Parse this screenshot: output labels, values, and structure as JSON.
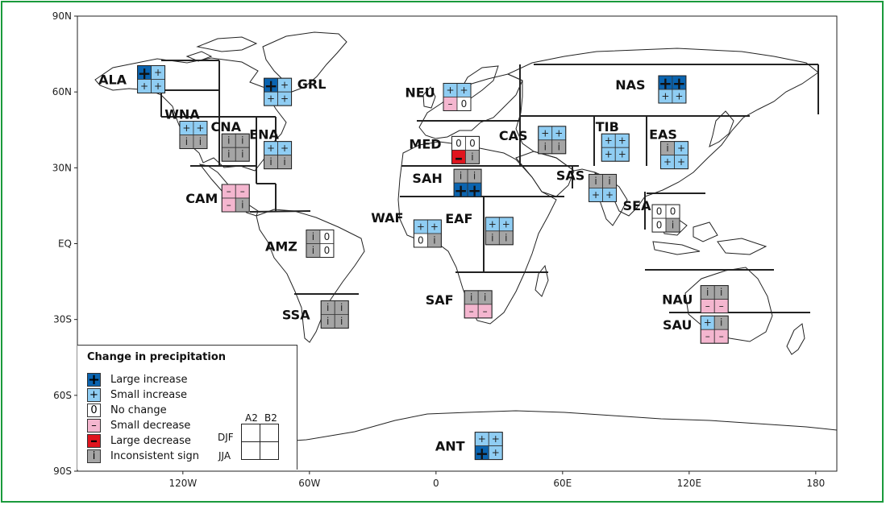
{
  "map": {
    "lat_labels": [
      "90N",
      "60N",
      "30N",
      "EQ",
      "30S",
      "60S",
      "90S"
    ],
    "lon_labels": [
      "120W",
      "60W",
      "0",
      "60E",
      "120E",
      "180"
    ],
    "lat_values": [
      90,
      60,
      30,
      0,
      -30,
      -60,
      -90
    ],
    "lon_values": [
      -120,
      -60,
      0,
      60,
      120,
      180
    ],
    "extent": {
      "lon_min": -170,
      "lon_max": 190,
      "lat_min": -90,
      "lat_max": 90
    }
  },
  "colors": {
    "large_increase": "#0a64b0",
    "small_increase": "#8fcdf3",
    "no_change": "#ffffff",
    "small_decrease": "#f4b6cf",
    "large_decrease": "#e0141e",
    "inconsistent": "#a5a5a5"
  },
  "symbols": {
    "LI": "+",
    "SI": "+",
    "NC": "0",
    "SD": "–",
    "LD": "–",
    "IN": "i"
  },
  "regions": [
    {
      "name": "ALA",
      "lon": -135,
      "lat": 65,
      "cells": [
        "LI",
        "SI",
        "SI",
        "SI"
      ]
    },
    {
      "name": "GRL",
      "lon": -75,
      "lat": 60,
      "cells": [
        "LI",
        "SI",
        "SI",
        "SI"
      ]
    },
    {
      "name": "WNA",
      "lon": -115,
      "lat": 43,
      "cells": [
        "SI",
        "SI",
        "IN",
        "IN"
      ]
    },
    {
      "name": "CNA",
      "lon": -95,
      "lat": 38,
      "cells": [
        "IN",
        "IN",
        "IN",
        "IN"
      ]
    },
    {
      "name": "ENA",
      "lon": -75,
      "lat": 35,
      "cells": [
        "SI",
        "SI",
        "IN",
        "IN"
      ]
    },
    {
      "name": "CAM",
      "lon": -95,
      "lat": 18,
      "cells": [
        "SD",
        "SD",
        "SD",
        "IN"
      ]
    },
    {
      "name": "AMZ",
      "lon": -55,
      "lat": 0,
      "cells": [
        "IN",
        "NC",
        "IN",
        "NC"
      ]
    },
    {
      "name": "SSA",
      "lon": -48,
      "lat": -28,
      "cells": [
        "IN",
        "IN",
        "IN",
        "IN"
      ]
    },
    {
      "name": "NEU",
      "lon": 10,
      "lat": 58,
      "cells": [
        "SI",
        "SI",
        "SD",
        "NC"
      ]
    },
    {
      "name": "MED",
      "lon": 14,
      "lat": 37,
      "cells": [
        "NC",
        "NC",
        "LD",
        "IN"
      ]
    },
    {
      "name": "SAH",
      "lon": 15,
      "lat": 24,
      "cells": [
        "IN",
        "IN",
        "LI",
        "LI"
      ]
    },
    {
      "name": "WAF",
      "lon": -4,
      "lat": 4,
      "cells": [
        "SI",
        "SI",
        "NC",
        "IN"
      ]
    },
    {
      "name": "EAF",
      "lon": 30,
      "lat": 5,
      "cells": [
        "SI",
        "SI",
        "IN",
        "IN"
      ]
    },
    {
      "name": "SAF",
      "lon": 20,
      "lat": -24,
      "cells": [
        "IN",
        "IN",
        "SD",
        "SD"
      ]
    },
    {
      "name": "CAS",
      "lon": 55,
      "lat": 41,
      "cells": [
        "SI",
        "SI",
        "IN",
        "IN"
      ]
    },
    {
      "name": "TIB",
      "lon": 85,
      "lat": 38,
      "cells": [
        "SI",
        "SI",
        "SI",
        "SI"
      ]
    },
    {
      "name": "NAS",
      "lon": 112,
      "lat": 61,
      "cells": [
        "LI",
        "LI",
        "SI",
        "SI"
      ]
    },
    {
      "name": "EAS",
      "lon": 113,
      "lat": 35,
      "cells": [
        "IN",
        "SI",
        "SI",
        "SI"
      ]
    },
    {
      "name": "SAS",
      "lon": 79,
      "lat": 22,
      "cells": [
        "IN",
        "IN",
        "SI",
        "SI"
      ]
    },
    {
      "name": "SEA",
      "lon": 109,
      "lat": 10,
      "cells": [
        "NC",
        "NC",
        "NC",
        "IN"
      ]
    },
    {
      "name": "NAU",
      "lon": 132,
      "lat": -22,
      "cells": [
        "IN",
        "IN",
        "SD",
        "SD"
      ]
    },
    {
      "name": "SAU",
      "lon": 132,
      "lat": -34,
      "cells": [
        "SI",
        "IN",
        "SD",
        "SD"
      ]
    },
    {
      "name": "ANT",
      "lon": 25,
      "lat": -80,
      "cells": [
        "SI",
        "SI",
        "LI",
        "SI"
      ]
    }
  ],
  "legend": {
    "title": "Change in precipitation",
    "items": [
      {
        "key": "LI",
        "label": "Large increase"
      },
      {
        "key": "SI",
        "label": "Small increase"
      },
      {
        "key": "NC",
        "label": "No change"
      },
      {
        "key": "SD",
        "label": "Small decrease"
      },
      {
        "key": "LD",
        "label": "Large decrease"
      },
      {
        "key": "IN",
        "label": "Inconsistent sign"
      }
    ],
    "key_columns": [
      "A2",
      "B2"
    ],
    "key_rows": [
      "DJF",
      "JJA"
    ]
  }
}
